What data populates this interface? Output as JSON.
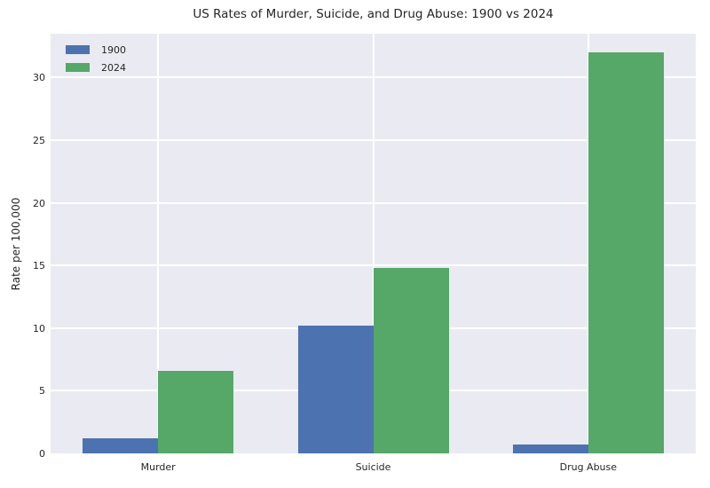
{
  "figure": {
    "background_color": "#ffffff",
    "plot_background_color": "#eaeaf2",
    "grid_color": "#ffffff",
    "text_color": "#262626"
  },
  "chart_data": {
    "type": "bar",
    "title": "US Rates of Murder, Suicide, and Drug Abuse: 1900 vs 2024",
    "categories": [
      "Murder",
      "Suicide",
      "Drug Abuse"
    ],
    "series": [
      {
        "name": "1900",
        "color": "#4c72b0",
        "values": [
          1.2,
          10.2,
          0.7
        ]
      },
      {
        "name": "2024",
        "color": "#55a868",
        "values": [
          6.6,
          14.8,
          32.0
        ]
      }
    ],
    "xlabel": "",
    "ylabel": "Rate per 100,000",
    "ylim": [
      0,
      33.5
    ],
    "yticks": [
      0,
      5,
      10,
      15,
      20,
      25,
      30
    ],
    "grid": true,
    "legend_position": "upper-left"
  }
}
